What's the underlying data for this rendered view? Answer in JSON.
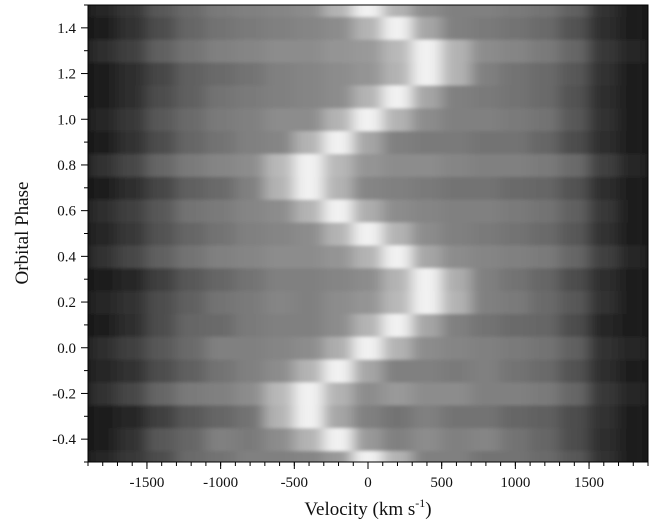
{
  "chart_data": {
    "type": "heatmap",
    "xlabel": {
      "text": "Velocity (km s",
      "sup": "-1",
      "end": ")"
    },
    "ylabel": "Orbital Phase",
    "x": [
      -1800,
      -1600,
      -1400,
      -1200,
      -1000,
      -800,
      -600,
      -400,
      -200,
      0,
      200,
      400,
      600,
      800,
      1000,
      1200,
      1400,
      1600,
      1800
    ],
    "y": [
      -0.5,
      -0.4,
      -0.3,
      -0.2,
      -0.1,
      0,
      0.1,
      0.2,
      0.3,
      0.4,
      0.5,
      0.6,
      0.7,
      0.8,
      0.9,
      1,
      1.1,
      1.2,
      1.3,
      1.4,
      1.5
    ],
    "z": [
      [
        0.15,
        0.22,
        0.3,
        0.42,
        0.45,
        0.5,
        0.5,
        0.52,
        0.6,
        0.95,
        0.7,
        0.5,
        0.5,
        0.45,
        0.45,
        0.42,
        0.35,
        0.2,
        0.12
      ],
      [
        0.12,
        0.2,
        0.35,
        0.4,
        0.5,
        0.48,
        0.55,
        0.7,
        0.95,
        0.6,
        0.5,
        0.55,
        0.5,
        0.52,
        0.45,
        0.4,
        0.3,
        0.18,
        0.1
      ],
      [
        0.1,
        0.15,
        0.25,
        0.35,
        0.4,
        0.45,
        0.7,
        0.95,
        0.65,
        0.5,
        0.45,
        0.5,
        0.45,
        0.45,
        0.4,
        0.38,
        0.3,
        0.2,
        0.12
      ],
      [
        0.2,
        0.28,
        0.4,
        0.48,
        0.5,
        0.55,
        0.72,
        0.95,
        0.7,
        0.55,
        0.6,
        0.55,
        0.55,
        0.5,
        0.5,
        0.48,
        0.4,
        0.22,
        0.15
      ],
      [
        0.15,
        0.2,
        0.3,
        0.38,
        0.45,
        0.5,
        0.55,
        0.7,
        0.95,
        0.65,
        0.5,
        0.5,
        0.48,
        0.5,
        0.45,
        0.42,
        0.32,
        0.18,
        0.12
      ],
      [
        0.18,
        0.25,
        0.35,
        0.42,
        0.5,
        0.5,
        0.52,
        0.55,
        0.68,
        0.95,
        0.7,
        0.55,
        0.52,
        0.5,
        0.48,
        0.45,
        0.38,
        0.2,
        0.15
      ],
      [
        0.12,
        0.18,
        0.3,
        0.4,
        0.42,
        0.48,
        0.5,
        0.5,
        0.55,
        0.7,
        0.95,
        0.65,
        0.5,
        0.45,
        0.42,
        0.4,
        0.3,
        0.15,
        0.1
      ],
      [
        0.15,
        0.2,
        0.3,
        0.38,
        0.45,
        0.48,
        0.52,
        0.5,
        0.55,
        0.58,
        0.72,
        0.95,
        0.7,
        0.5,
        0.48,
        0.42,
        0.35,
        0.2,
        0.12
      ],
      [
        0.1,
        0.15,
        0.25,
        0.35,
        0.4,
        0.45,
        0.5,
        0.5,
        0.52,
        0.55,
        0.7,
        0.95,
        0.68,
        0.5,
        0.45,
        0.4,
        0.3,
        0.18,
        0.1
      ],
      [
        0.2,
        0.28,
        0.38,
        0.45,
        0.5,
        0.52,
        0.55,
        0.55,
        0.58,
        0.7,
        0.95,
        0.65,
        0.55,
        0.52,
        0.5,
        0.48,
        0.4,
        0.25,
        0.15
      ],
      [
        0.15,
        0.22,
        0.32,
        0.4,
        0.45,
        0.5,
        0.52,
        0.55,
        0.7,
        0.95,
        0.7,
        0.55,
        0.5,
        0.48,
        0.45,
        0.42,
        0.35,
        0.2,
        0.12
      ],
      [
        0.18,
        0.25,
        0.35,
        0.45,
        0.48,
        0.52,
        0.55,
        0.7,
        0.95,
        0.68,
        0.55,
        0.52,
        0.5,
        0.5,
        0.48,
        0.45,
        0.38,
        0.22,
        0.12
      ],
      [
        0.12,
        0.18,
        0.28,
        0.38,
        0.42,
        0.5,
        0.7,
        0.95,
        0.7,
        0.52,
        0.5,
        0.48,
        0.45,
        0.45,
        0.42,
        0.4,
        0.32,
        0.18,
        0.1
      ],
      [
        0.2,
        0.28,
        0.4,
        0.48,
        0.52,
        0.55,
        0.72,
        0.95,
        0.72,
        0.58,
        0.55,
        0.55,
        0.52,
        0.5,
        0.5,
        0.48,
        0.42,
        0.25,
        0.15
      ],
      [
        0.12,
        0.2,
        0.3,
        0.4,
        0.45,
        0.5,
        0.52,
        0.7,
        0.95,
        0.65,
        0.5,
        0.48,
        0.48,
        0.45,
        0.45,
        0.4,
        0.3,
        0.18,
        0.1
      ],
      [
        0.15,
        0.22,
        0.35,
        0.42,
        0.48,
        0.5,
        0.55,
        0.55,
        0.7,
        0.95,
        0.7,
        0.55,
        0.5,
        0.5,
        0.48,
        0.45,
        0.35,
        0.2,
        0.12
      ],
      [
        0.1,
        0.18,
        0.3,
        0.38,
        0.45,
        0.48,
        0.5,
        0.52,
        0.55,
        0.7,
        0.95,
        0.65,
        0.5,
        0.48,
        0.45,
        0.42,
        0.32,
        0.18,
        0.1
      ],
      [
        0.12,
        0.18,
        0.28,
        0.38,
        0.42,
        0.45,
        0.5,
        0.52,
        0.55,
        0.58,
        0.7,
        0.95,
        0.7,
        0.5,
        0.45,
        0.42,
        0.35,
        0.2,
        0.12
      ],
      [
        0.18,
        0.25,
        0.38,
        0.45,
        0.5,
        0.52,
        0.55,
        0.55,
        0.58,
        0.6,
        0.72,
        0.95,
        0.7,
        0.55,
        0.52,
        0.48,
        0.4,
        0.22,
        0.15
      ],
      [
        0.12,
        0.2,
        0.3,
        0.4,
        0.45,
        0.48,
        0.5,
        0.52,
        0.55,
        0.7,
        0.95,
        0.65,
        0.5,
        0.48,
        0.45,
        0.42,
        0.32,
        0.18,
        0.1
      ],
      [
        0.15,
        0.22,
        0.35,
        0.42,
        0.48,
        0.5,
        0.52,
        0.55,
        0.7,
        0.95,
        0.7,
        0.55,
        0.5,
        0.5,
        0.48,
        0.45,
        0.38,
        0.2,
        0.12
      ]
    ],
    "xlim": [
      -1900,
      1900
    ],
    "ylim": [
      -0.5,
      1.5
    ],
    "xticks": [
      -1500,
      -1000,
      -500,
      0,
      500,
      1000,
      1500
    ],
    "yticks": [
      -0.4,
      -0.2,
      {
        "value": 0,
        "label": "0.0"
      },
      0.2,
      0.4,
      0.6,
      0.8,
      {
        "value": 1,
        "label": "1.0"
      },
      1.2,
      1.4
    ],
    "colormap": "gray"
  }
}
